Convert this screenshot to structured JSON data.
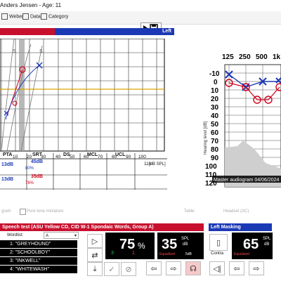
{
  "header": {
    "patient": "Anders Jensen - Age: 11"
  },
  "toolbar": {
    "weber": "Weber",
    "data": "Data",
    "category": "Category"
  },
  "left_panel": {
    "label": "Left"
  },
  "speech_chart": {
    "x_ticks": [
      "10",
      "20",
      "30",
      "40",
      "50",
      "60",
      "70",
      "80",
      "90",
      "100",
      "110"
    ],
    "x_unit": "[dB SPL]",
    "curve_labels": [
      "S",
      "S"
    ]
  },
  "summary_table": {
    "headers": [
      "PTA",
      "SRT",
      "DS",
      "MCL",
      "UCL"
    ],
    "rows": [
      {
        "pta": "13dB",
        "srt": "45dB",
        "srt_pct": "80%"
      },
      {
        "pta": "13dB",
        "srt": "35dB",
        "srt_pct": "76%"
      }
    ]
  },
  "audiogram": {
    "freq_labels": [
      "125",
      "250",
      "500",
      "1k"
    ],
    "db_labels": [
      "-10",
      "0",
      "10",
      "20",
      "30",
      "40",
      "50",
      "60",
      "70",
      "80",
      "90",
      "100",
      "110",
      "120"
    ],
    "ylabel": "Hearing level [dB]",
    "caption": "Master audiogram 04/06/2024",
    "colors": {
      "right": "#d0021b",
      "left": "#1c39b5"
    }
  },
  "options": {
    "diagram": "gram",
    "pure_tone": "Pure tone miniature",
    "table": "Table:",
    "headset": "Headset (AC)"
  },
  "speech_test": {
    "title": "Speech test (ASU Yellow CD, CID W-1 Spondaic Words, Group A)",
    "wordlist_label": "Wordlist:",
    "wordlist_value": "A",
    "words": [
      {
        "num": "1:",
        "word": "\"GREYHOUND\""
      },
      {
        "num": "2:",
        "word": "\"SCHOOLBOY\""
      },
      {
        "num": "3:",
        "word": "\"INKWELL\""
      },
      {
        "num": "4:",
        "word": "\"WHITEWASH\""
      }
    ],
    "score_pct": "75",
    "score_unit": "%",
    "correct": "3",
    "wrong": "1",
    "level": "35",
    "level_unit_top": "SPL",
    "level_unit_bottom": "dB",
    "equalised": "Equalised",
    "step": "5dB"
  },
  "masking": {
    "title": "Left Masking",
    "level": "65",
    "unit_top": "SPL",
    "unit_bottom": "dB",
    "contra": "Contra",
    "equalised": "Equalised"
  }
}
